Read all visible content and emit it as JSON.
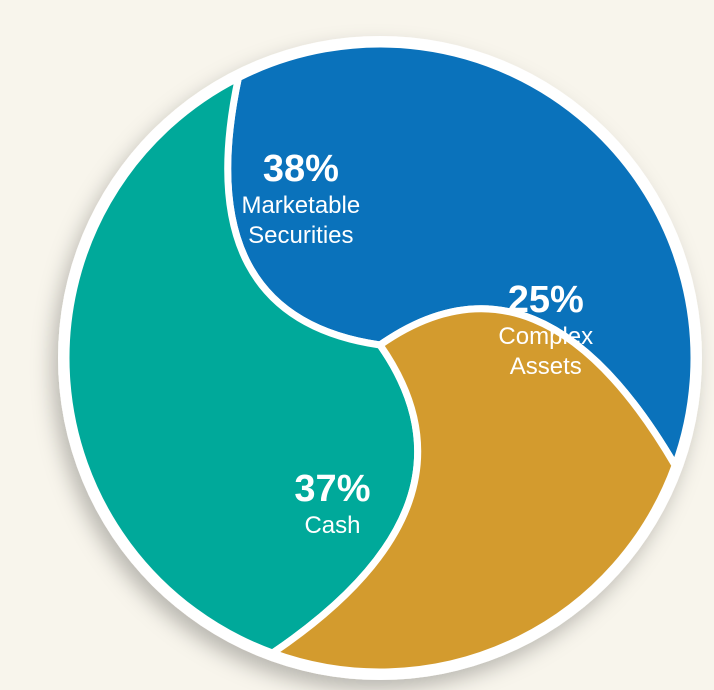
{
  "chart_data": {
    "type": "pie",
    "categories": [
      "Marketable Securities",
      "Cash",
      "Complex Assets"
    ],
    "values": [
      38,
      37,
      25
    ],
    "value_labels": [
      "38%",
      "37%",
      "25%"
    ],
    "colors": [
      "#0a72bb",
      "#00a99a",
      "#d39b2e"
    ]
  }
}
